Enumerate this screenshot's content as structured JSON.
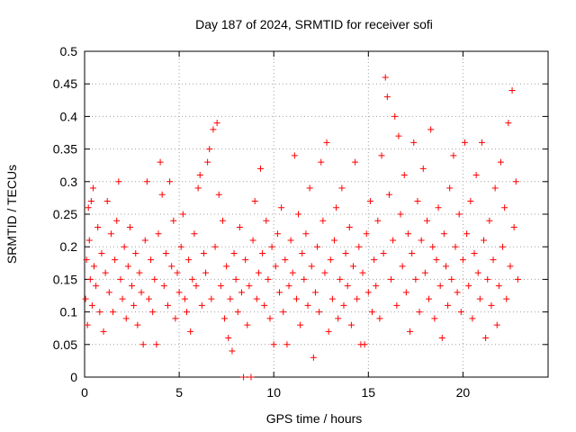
{
  "chart_data": {
    "type": "scatter",
    "title": "Day 187 of 2024, SRMTID for receiver sofi",
    "xlabel": "GPS time / hours",
    "ylabel": "SRMTID / TECUs",
    "xlim": [
      0,
      24.5
    ],
    "ylim": [
      0,
      0.5
    ],
    "xticks": [
      0,
      5,
      10,
      15,
      20
    ],
    "yticks": [
      0,
      0.05,
      0.1,
      0.15,
      0.2,
      0.25,
      0.3,
      0.35,
      0.4,
      0.45,
      0.5
    ],
    "grid": true,
    "legend": "none",
    "marker": "plus",
    "color": "#ff0000",
    "series": [
      {
        "points": [
          [
            0.05,
            0.12
          ],
          [
            0.1,
            0.18
          ],
          [
            0.15,
            0.08
          ],
          [
            0.2,
            0.26
          ],
          [
            0.25,
            0.21
          ],
          [
            0.3,
            0.15
          ],
          [
            0.35,
            0.27
          ],
          [
            0.4,
            0.11
          ],
          [
            0.45,
            0.29
          ],
          [
            0.5,
            0.17
          ],
          [
            0.6,
            0.14
          ],
          [
            0.7,
            0.23
          ],
          [
            0.8,
            0.1
          ],
          [
            0.9,
            0.19
          ],
          [
            1.0,
            0.07
          ],
          [
            1.1,
            0.16
          ],
          [
            1.2,
            0.27
          ],
          [
            1.3,
            0.13
          ],
          [
            1.4,
            0.22
          ],
          [
            1.5,
            0.1
          ],
          [
            1.6,
            0.18
          ],
          [
            1.7,
            0.24
          ],
          [
            1.8,
            0.3
          ],
          [
            1.9,
            0.15
          ],
          [
            2.0,
            0.12
          ],
          [
            2.1,
            0.2
          ],
          [
            2.2,
            0.09
          ],
          [
            2.3,
            0.17
          ],
          [
            2.4,
            0.23
          ],
          [
            2.5,
            0.14
          ],
          [
            2.6,
            0.11
          ],
          [
            2.7,
            0.19
          ],
          [
            2.8,
            0.08
          ],
          [
            2.9,
            0.16
          ],
          [
            3.0,
            0.13
          ],
          [
            3.1,
            0.05
          ],
          [
            3.2,
            0.21
          ],
          [
            3.3,
            0.3
          ],
          [
            3.4,
            0.12
          ],
          [
            3.5,
            0.18
          ],
          [
            3.6,
            0.1
          ],
          [
            3.7,
            0.15
          ],
          [
            3.8,
            0.05
          ],
          [
            3.9,
            0.22
          ],
          [
            4.0,
            0.33
          ],
          [
            4.1,
            0.28
          ],
          [
            4.2,
            0.14
          ],
          [
            4.3,
            0.19
          ],
          [
            4.4,
            0.11
          ],
          [
            4.5,
            0.3
          ],
          [
            4.6,
            0.17
          ],
          [
            4.7,
            0.24
          ],
          [
            4.8,
            0.09
          ],
          [
            4.9,
            0.16
          ],
          [
            5.0,
            0.13
          ],
          [
            5.1,
            0.2
          ],
          [
            5.2,
            0.25
          ],
          [
            5.3,
            0.12
          ],
          [
            5.4,
            0.1
          ],
          [
            5.5,
            0.18
          ],
          [
            5.6,
            0.07
          ],
          [
            5.7,
            0.15
          ],
          [
            5.8,
            0.22
          ],
          [
            5.9,
            0.14
          ],
          [
            6.0,
            0.29
          ],
          [
            6.1,
            0.31
          ],
          [
            6.2,
            0.11
          ],
          [
            6.3,
            0.19
          ],
          [
            6.4,
            0.16
          ],
          [
            6.5,
            0.33
          ],
          [
            6.6,
            0.35
          ],
          [
            6.7,
            0.12
          ],
          [
            6.8,
            0.38
          ],
          [
            6.9,
            0.2
          ],
          [
            7.0,
            0.39
          ],
          [
            7.1,
            0.28
          ],
          [
            7.2,
            0.14
          ],
          [
            7.3,
            0.24
          ],
          [
            7.4,
            0.09
          ],
          [
            7.5,
            0.17
          ],
          [
            7.6,
            0.06
          ],
          [
            7.7,
            0.12
          ],
          [
            7.8,
            0.04
          ],
          [
            7.9,
            0.19
          ],
          [
            8.0,
            0.15
          ],
          [
            8.1,
            0.1
          ],
          [
            8.2,
            0.23
          ],
          [
            8.3,
            0.13
          ],
          [
            8.4,
            0.0
          ],
          [
            8.5,
            0.18
          ],
          [
            8.6,
            0.08
          ],
          [
            8.7,
            0.14
          ],
          [
            8.8,
            0.0
          ],
          [
            8.9,
            0.21
          ],
          [
            9.0,
            0.27
          ],
          [
            9.1,
            0.12
          ],
          [
            9.2,
            0.16
          ],
          [
            9.3,
            0.32
          ],
          [
            9.4,
            0.19
          ],
          [
            9.5,
            0.11
          ],
          [
            9.6,
            0.24
          ],
          [
            9.7,
            0.15
          ],
          [
            9.8,
            0.09
          ],
          [
            9.9,
            0.2
          ],
          [
            10.0,
            0.05
          ],
          [
            10.1,
            0.17
          ],
          [
            10.2,
            0.22
          ],
          [
            10.3,
            0.13
          ],
          [
            10.4,
            0.26
          ],
          [
            10.5,
            0.1
          ],
          [
            10.6,
            0.18
          ],
          [
            10.7,
            0.05
          ],
          [
            10.8,
            0.14
          ],
          [
            10.9,
            0.21
          ],
          [
            11.0,
            0.16
          ],
          [
            11.1,
            0.34
          ],
          [
            11.2,
            0.12
          ],
          [
            11.3,
            0.25
          ],
          [
            11.4,
            0.08
          ],
          [
            11.5,
            0.19
          ],
          [
            11.6,
            0.15
          ],
          [
            11.7,
            0.22
          ],
          [
            11.8,
            0.11
          ],
          [
            11.9,
            0.29
          ],
          [
            12.0,
            0.17
          ],
          [
            12.1,
            0.03
          ],
          [
            12.2,
            0.13
          ],
          [
            12.3,
            0.2
          ],
          [
            12.4,
            0.1
          ],
          [
            12.5,
            0.33
          ],
          [
            12.6,
            0.24
          ],
          [
            12.7,
            0.16
          ],
          [
            12.8,
            0.36
          ],
          [
            12.9,
            0.07
          ],
          [
            13.0,
            0.18
          ],
          [
            13.1,
            0.12
          ],
          [
            13.2,
            0.21
          ],
          [
            13.3,
            0.26
          ],
          [
            13.4,
            0.09
          ],
          [
            13.5,
            0.15
          ],
          [
            13.6,
            0.29
          ],
          [
            13.7,
            0.11
          ],
          [
            13.8,
            0.19
          ],
          [
            13.9,
            0.14
          ],
          [
            14.0,
            0.23
          ],
          [
            14.1,
            0.08
          ],
          [
            14.2,
            0.17
          ],
          [
            14.3,
            0.33
          ],
          [
            14.4,
            0.12
          ],
          [
            14.5,
            0.2
          ],
          [
            14.6,
            0.05
          ],
          [
            14.7,
            0.16
          ],
          [
            14.8,
            0.05
          ],
          [
            14.9,
            0.22
          ],
          [
            15.0,
            0.13
          ],
          [
            15.1,
            0.27
          ],
          [
            15.2,
            0.1
          ],
          [
            15.3,
            0.18
          ],
          [
            15.4,
            0.14
          ],
          [
            15.5,
            0.24
          ],
          [
            15.6,
            0.09
          ],
          [
            15.7,
            0.34
          ],
          [
            15.8,
            0.19
          ],
          [
            15.9,
            0.46
          ],
          [
            16.0,
            0.43
          ],
          [
            16.1,
            0.28
          ],
          [
            16.2,
            0.15
          ],
          [
            16.3,
            0.21
          ],
          [
            16.4,
            0.4
          ],
          [
            16.5,
            0.11
          ],
          [
            16.6,
            0.37
          ],
          [
            16.7,
            0.25
          ],
          [
            16.8,
            0.17
          ],
          [
            16.9,
            0.31
          ],
          [
            17.0,
            0.13
          ],
          [
            17.1,
            0.22
          ],
          [
            17.2,
            0.07
          ],
          [
            17.3,
            0.19
          ],
          [
            17.4,
            0.36
          ],
          [
            17.5,
            0.15
          ],
          [
            17.6,
            0.27
          ],
          [
            17.7,
            0.1
          ],
          [
            17.8,
            0.21
          ],
          [
            17.9,
            0.32
          ],
          [
            18.0,
            0.16
          ],
          [
            18.1,
            0.24
          ],
          [
            18.2,
            0.12
          ],
          [
            18.3,
            0.38
          ],
          [
            18.4,
            0.2
          ],
          [
            18.5,
            0.09
          ],
          [
            18.6,
            0.18
          ],
          [
            18.7,
            0.26
          ],
          [
            18.8,
            0.14
          ],
          [
            18.9,
            0.06
          ],
          [
            19.0,
            0.22
          ],
          [
            19.1,
            0.17
          ],
          [
            19.2,
            0.11
          ],
          [
            19.3,
            0.29
          ],
          [
            19.4,
            0.15
          ],
          [
            19.5,
            0.34
          ],
          [
            19.6,
            0.2
          ],
          [
            19.7,
            0.13
          ],
          [
            19.8,
            0.25
          ],
          [
            19.9,
            0.1
          ],
          [
            20.0,
            0.18
          ],
          [
            20.1,
            0.36
          ],
          [
            20.2,
            0.22
          ],
          [
            20.3,
            0.14
          ],
          [
            20.4,
            0.27
          ],
          [
            20.5,
            0.09
          ],
          [
            20.6,
            0.19
          ],
          [
            20.7,
            0.31
          ],
          [
            20.8,
            0.16
          ],
          [
            20.9,
            0.12
          ],
          [
            21.0,
            0.36
          ],
          [
            21.1,
            0.21
          ],
          [
            21.2,
            0.06
          ],
          [
            21.3,
            0.15
          ],
          [
            21.4,
            0.24
          ],
          [
            21.5,
            0.11
          ],
          [
            21.6,
            0.18
          ],
          [
            21.7,
            0.29
          ],
          [
            21.8,
            0.08
          ],
          [
            21.9,
            0.14
          ],
          [
            22.0,
            0.33
          ],
          [
            22.1,
            0.2
          ],
          [
            22.2,
            0.26
          ],
          [
            22.3,
            0.12
          ],
          [
            22.4,
            0.39
          ],
          [
            22.5,
            0.17
          ],
          [
            22.6,
            0.44
          ],
          [
            22.7,
            0.23
          ],
          [
            22.8,
            0.3
          ],
          [
            22.9,
            0.15
          ]
        ]
      }
    ]
  }
}
